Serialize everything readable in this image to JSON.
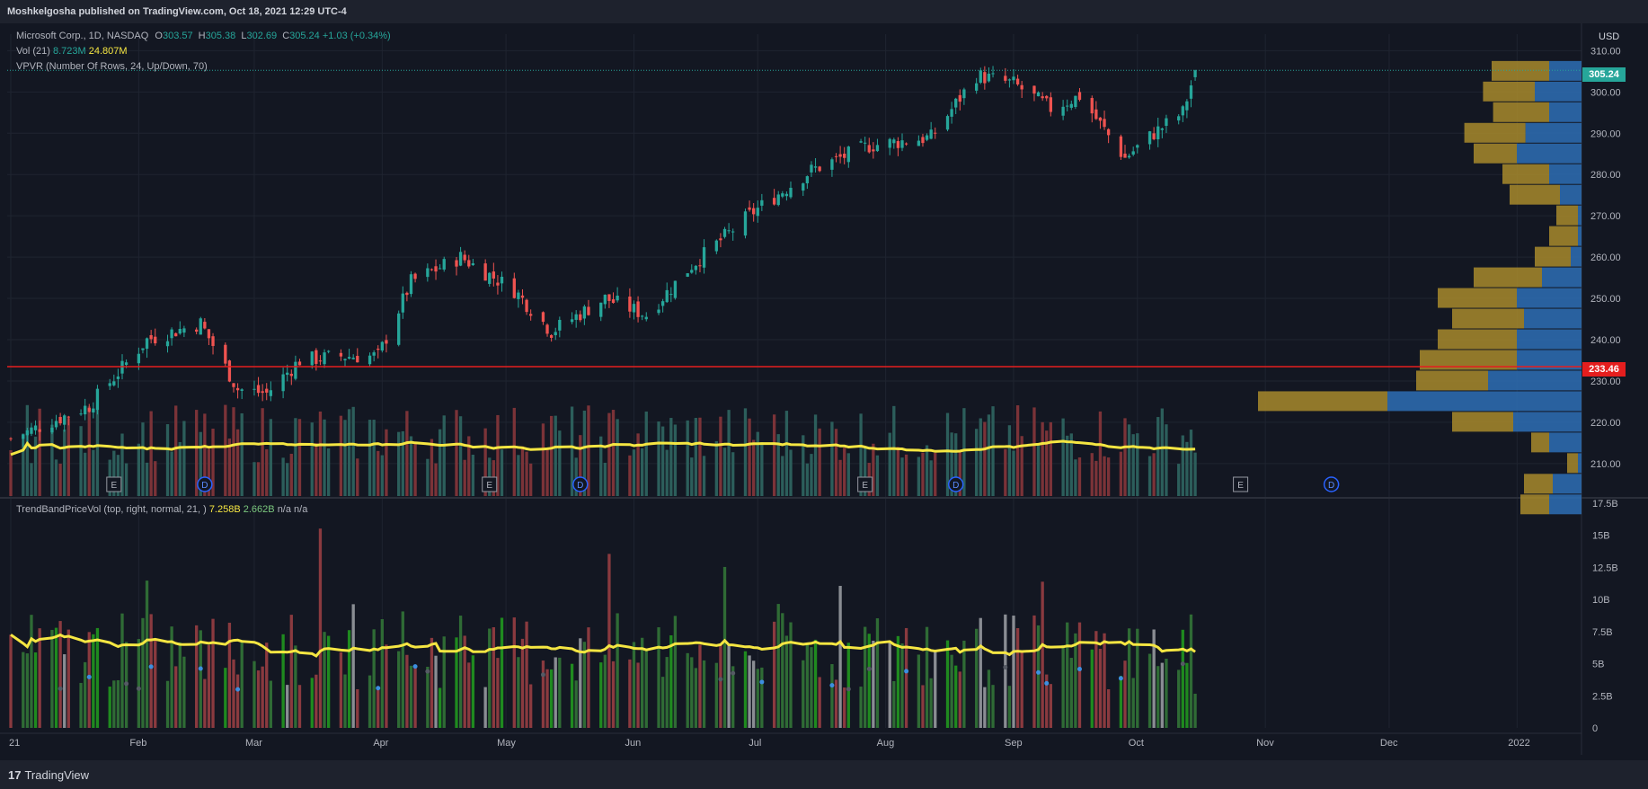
{
  "header": {
    "publish_line": "Moshkelgosha published on TradingView.com, Oct 18, 2021 12:29 UTC-4"
  },
  "legend": {
    "symbol_title": "Microsoft Corp., 1D, NASDAQ",
    "ohlc": {
      "o_label": "O",
      "o": "303.57",
      "h_label": "H",
      "h": "305.38",
      "l_label": "L",
      "l": "302.69",
      "c_label": "C",
      "c": "305.24",
      "change": "+1.03 (+0.34%)"
    },
    "vol_label": "Vol (21)",
    "vol_value": "8.723M",
    "vol_ma": "24.807M",
    "vpvr_label": "VPVR (Number Of Rows, 24, Up/Down, 70)",
    "trend_label": "TrendBandPriceVol (top, right, normal, 21, )",
    "trend_v1": "7.258B",
    "trend_v2": "2.662B",
    "trend_na": "n/a  n/a"
  },
  "price_axis": {
    "currency": "USD",
    "last_price": "305.24",
    "poc_price": "233.46"
  },
  "footer": {
    "brand": "TradingView",
    "logo": "17"
  },
  "colors": {
    "up": "#26a69a",
    "down": "#ef5350",
    "volume_up": "#2c5e5b",
    "volume_down": "#7b3338",
    "ma": "#f5e642",
    "vpvr_up": "#2e6fb5",
    "vpvr_down": "#a88a2b",
    "poc_line": "#e51e1e",
    "last_price": "#26a69a",
    "trend_green": "#1f8a1f",
    "trend_gray": "#8a8d93",
    "trend_red": "#8a3a3f",
    "dot_blue": "#3d8fe0"
  },
  "chart_data": [
    {
      "type": "candlestick",
      "title": "Microsoft Corp., 1D, NASDAQ",
      "x_range": [
        "2021-01-01",
        "2022-01-14"
      ],
      "x_ticks": [
        "21",
        "Feb",
        "Mar",
        "Apr",
        "May",
        "Jun",
        "Jul",
        "Aug",
        "Sep",
        "Oct",
        "Nov",
        "Dec",
        "2022"
      ],
      "y_range": [
        203,
        314
      ],
      "y_ticks": [
        210,
        220,
        230,
        240,
        250,
        260,
        270,
        280,
        290,
        300,
        310
      ],
      "anchors": [
        {
          "date": "2021-01-01",
          "close": 216
        },
        {
          "date": "2021-01-20",
          "close": 224
        },
        {
          "date": "2021-01-27",
          "close": 232
        },
        {
          "date": "2021-02-03",
          "close": 240
        },
        {
          "date": "2021-02-16",
          "close": 244
        },
        {
          "date": "2021-02-25",
          "close": 228
        },
        {
          "date": "2021-03-04",
          "close": 227
        },
        {
          "date": "2021-03-12",
          "close": 235
        },
        {
          "date": "2021-03-22",
          "close": 236
        },
        {
          "date": "2021-03-31",
          "close": 236
        },
        {
          "date": "2021-04-08",
          "close": 254
        },
        {
          "date": "2021-04-20",
          "close": 260
        },
        {
          "date": "2021-05-03",
          "close": 252
        },
        {
          "date": "2021-05-12",
          "close": 242
        },
        {
          "date": "2021-05-25",
          "close": 250
        },
        {
          "date": "2021-06-04",
          "close": 246
        },
        {
          "date": "2021-06-15",
          "close": 258
        },
        {
          "date": "2021-06-30",
          "close": 271
        },
        {
          "date": "2021-07-14",
          "close": 281
        },
        {
          "date": "2021-07-28",
          "close": 287
        },
        {
          "date": "2021-08-12",
          "close": 289
        },
        {
          "date": "2021-08-23",
          "close": 304
        },
        {
          "date": "2021-09-01",
          "close": 302
        },
        {
          "date": "2021-09-10",
          "close": 296
        },
        {
          "date": "2021-09-17",
          "close": 299
        },
        {
          "date": "2021-09-28",
          "close": 284
        },
        {
          "date": "2021-10-05",
          "close": 290
        },
        {
          "date": "2021-10-12",
          "close": 295
        },
        {
          "date": "2021-10-15",
          "close": 305
        }
      ],
      "last": {
        "date": "2021-10-15",
        "open": 303.57,
        "high": 305.38,
        "low": 302.69,
        "close": 305.24
      },
      "horizontal_line": 233.46,
      "events": [
        {
          "type": "E",
          "date": "2021-01-26"
        },
        {
          "type": "D",
          "date": "2021-02-17"
        },
        {
          "type": "E",
          "date": "2021-04-27"
        },
        {
          "type": "D",
          "date": "2021-05-19"
        },
        {
          "type": "E",
          "date": "2021-07-27"
        },
        {
          "type": "D",
          "date": "2021-08-18"
        },
        {
          "type": "E",
          "date": "2021-10-26"
        },
        {
          "type": "D",
          "date": "2021-11-17"
        }
      ]
    },
    {
      "type": "bar",
      "title": "Vol (21)",
      "values_note_ma": 24.807
    },
    {
      "type": "bar",
      "title": "VPVR (Number Of Rows, 24, Up/Down, 70)",
      "rows": [
        {
          "price": 305,
          "up": 80,
          "down": 45
        },
        {
          "price": 300,
          "up": 72,
          "down": 65
        },
        {
          "price": 295,
          "up": 78,
          "down": 45
        },
        {
          "price": 290,
          "up": 85,
          "down": 78
        },
        {
          "price": 285,
          "up": 60,
          "down": 90
        },
        {
          "price": 280,
          "up": 65,
          "down": 45
        },
        {
          "price": 275,
          "up": 70,
          "down": 30
        },
        {
          "price": 270,
          "up": 30,
          "down": 5
        },
        {
          "price": 265,
          "up": 40,
          "down": 5
        },
        {
          "price": 260,
          "up": 50,
          "down": 15
        },
        {
          "price": 255,
          "up": 95,
          "down": 55
        },
        {
          "price": 250,
          "up": 110,
          "down": 90
        },
        {
          "price": 245,
          "up": 100,
          "down": 80
        },
        {
          "price": 240,
          "up": 110,
          "down": 90
        },
        {
          "price": 235,
          "up": 135,
          "down": 90
        },
        {
          "price": 230,
          "up": 100,
          "down": 130
        },
        {
          "price": 225,
          "up": 180,
          "down": 270
        },
        {
          "price": 220,
          "up": 85,
          "down": 95
        },
        {
          "price": 215,
          "up": 25,
          "down": 45
        },
        {
          "price": 210,
          "up": 15,
          "down": 5
        },
        {
          "price": 205,
          "up": 40,
          "down": 40
        },
        {
          "price": 200,
          "up": 40,
          "down": 45
        }
      ]
    },
    {
      "type": "bar",
      "title": "TrendBandPriceVol (top, right, normal, 21, )",
      "y_range": [
        0,
        17.5
      ],
      "y_ticks": [
        "0",
        "2.5B",
        "5B",
        "7.5B",
        "10B",
        "12.5B",
        "15B",
        "17.5B"
      ],
      "last_values": [
        7.258,
        2.662
      ]
    }
  ]
}
